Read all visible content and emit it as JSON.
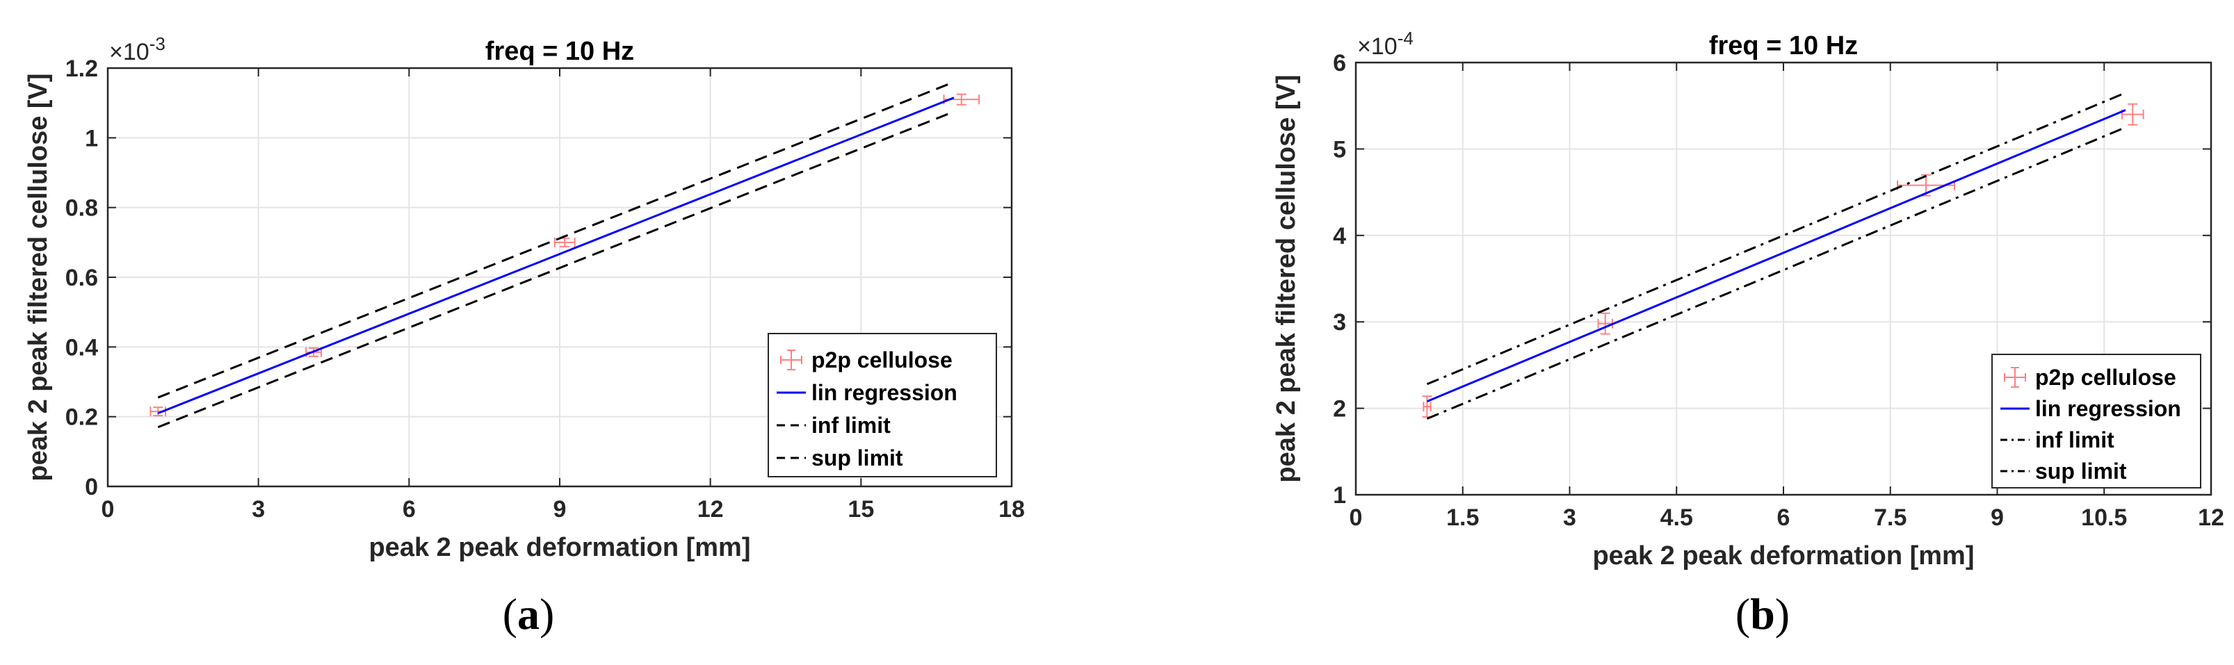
{
  "chart_data": [
    {
      "type": "scatter",
      "panel": "(a)",
      "caption_open": "(",
      "caption_letter": "a",
      "caption_close": ")",
      "title": "freq = 10 Hz",
      "xlabel": "peak 2 peak deformation [mm]",
      "ylabel": "peak 2 peak filtered cellulose [V]",
      "y_multiplier": "×10",
      "y_exponent": "-3",
      "xlim": [
        0,
        18
      ],
      "ylim": [
        0,
        1.2
      ],
      "xticks": [
        0,
        3,
        6,
        9,
        12,
        15,
        18
      ],
      "xtick_labels": [
        "0",
        "3",
        "6",
        "9",
        "12",
        "15",
        "18"
      ],
      "yticks": [
        0,
        0.2,
        0.4,
        0.6,
        0.8,
        1.0,
        1.2
      ],
      "ytick_labels": [
        "0",
        "0.2",
        "0.4",
        "0.6",
        "0.8",
        "1",
        "1.2"
      ],
      "grid": true,
      "legend_position": "bottom-right",
      "series": [
        {
          "name": "p2p cellulose",
          "style": "errorbar",
          "color": "#ff8080",
          "x": [
            1.0,
            4.1,
            9.1,
            17.0
          ],
          "y": [
            0.215,
            0.385,
            0.7,
            1.11
          ],
          "xerr": [
            0.15,
            0.15,
            0.2,
            0.35
          ],
          "yerr": [
            0.012,
            0.012,
            0.012,
            0.015
          ]
        },
        {
          "name": "lin regression",
          "style": "solid",
          "color": "#0000ff",
          "x": [
            1.0,
            16.85
          ],
          "y": [
            0.21,
            1.115
          ]
        },
        {
          "name": "inf limit",
          "style": "dashed",
          "color": "#000000",
          "x": [
            1.0,
            16.85
          ],
          "y": [
            0.17,
            1.075
          ]
        },
        {
          "name": "sup limit",
          "style": "dashed",
          "color": "#000000",
          "x": [
            1.0,
            16.85
          ],
          "y": [
            0.255,
            1.16
          ]
        }
      ]
    },
    {
      "type": "scatter",
      "panel": "(b)",
      "caption_open": "(",
      "caption_letter": "b",
      "caption_close": ")",
      "title": "freq = 10 Hz",
      "xlabel": "peak 2 peak deformation [mm]",
      "ylabel": "peak 2 peak filtered cellulose [V]",
      "y_multiplier": "×10",
      "y_exponent": "-4",
      "xlim": [
        0,
        12
      ],
      "ylim": [
        1,
        6
      ],
      "xticks": [
        0,
        1.5,
        3,
        4.5,
        6,
        7.5,
        9,
        10.5,
        12
      ],
      "xtick_labels": [
        "0",
        "1.5",
        "3",
        "4.5",
        "6",
        "7.5",
        "9",
        "10.5",
        "12"
      ],
      "yticks": [
        1,
        2,
        3,
        4,
        5,
        6
      ],
      "ytick_labels": [
        "1",
        "2",
        "3",
        "4",
        "5",
        "6"
      ],
      "grid": true,
      "legend_position": "bottom-right",
      "series": [
        {
          "name": "p2p cellulose",
          "style": "errorbar",
          "color": "#ff8080",
          "x": [
            1.0,
            3.5,
            8.0,
            10.9
          ],
          "y": [
            2.02,
            2.98,
            4.58,
            5.4
          ],
          "xerr": [
            0.05,
            0.1,
            0.4,
            0.15
          ],
          "yerr": [
            0.12,
            0.12,
            0.12,
            0.12
          ]
        },
        {
          "name": "lin regression",
          "style": "solid",
          "color": "#0000ff",
          "x": [
            1.0,
            10.8
          ],
          "y": [
            2.08,
            5.45
          ]
        },
        {
          "name": "inf limit",
          "style": "dashdot",
          "color": "#000000",
          "x": [
            1.0,
            10.8
          ],
          "y": [
            1.88,
            5.25
          ]
        },
        {
          "name": "sup limit",
          "style": "dashdot",
          "color": "#000000",
          "x": [
            1.0,
            10.8
          ],
          "y": [
            2.28,
            5.65
          ]
        }
      ]
    }
  ]
}
